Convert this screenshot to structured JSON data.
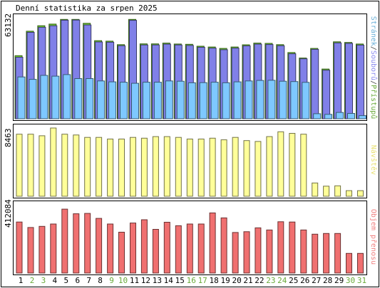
{
  "chart_data": {
    "type": "bar",
    "title": "Denní statistika za srpen 2025",
    "x": [
      "1",
      "2",
      "3",
      "4",
      "5",
      "6",
      "7",
      "8",
      "9",
      "10",
      "11",
      "12",
      "13",
      "14",
      "15",
      "16",
      "17",
      "18",
      "19",
      "20",
      "21",
      "22",
      "23",
      "24",
      "25",
      "26",
      "27",
      "28",
      "29",
      "30",
      "31"
    ],
    "weekend_days": [
      "2",
      "3",
      "9",
      "10",
      "16",
      "17",
      "23",
      "24",
      "30",
      "31"
    ],
    "panels": [
      {
        "id": "hits",
        "max_label": "63132",
        "ylim": [
          0,
          63132
        ],
        "side_label_parts": [
          {
            "text": "Stránek",
            "color": "#6ab0d8"
          },
          {
            "text": "/",
            "color": "#444444"
          },
          {
            "text": "Souborů",
            "color": "#8a8af0"
          },
          {
            "text": "/",
            "color": "#444444"
          },
          {
            "text": "Přístupů",
            "color": "#6aaa3a"
          }
        ],
        "series": [
          {
            "name": "Přístupů",
            "color": "#6ecc30",
            "values": [
              40000,
              55500,
              59000,
              60000,
              63000,
              63000,
              60500,
              49500,
              49200,
              47000,
              63000,
              47500,
              47500,
              48000,
              47400,
              47200,
              46000,
              45500,
              44600,
              45500,
              46900,
              48000,
              47800,
              47000,
              42000,
              38500,
              44600,
              31500,
              48800,
              48400,
              47400
            ]
          },
          {
            "name": "Souborů",
            "color": "#8080e8",
            "values": [
              39000,
              54800,
              58000,
              59000,
              62500,
              62600,
              59500,
              48700,
              48500,
              46300,
              62400,
              46800,
              46800,
              47300,
              46800,
              46500,
              45300,
              44800,
              43800,
              44800,
              46200,
              47300,
              47100,
              46300,
              41200,
              38000,
              44000,
              30800,
              48100,
              47800,
              46700
            ]
          },
          {
            "name": "Stránek",
            "color": "#7ec8ff",
            "values": [
              26500,
              25000,
              27500,
              27000,
              28000,
              25500,
              25500,
              24000,
              23400,
              23200,
              22500,
              23200,
              23200,
              24000,
              23800,
              22800,
              22900,
              23200,
              22800,
              23400,
              24000,
              24300,
              24400,
              23800,
              23600,
              23100,
              3200,
              2800,
              4000,
              3400,
              2000
            ]
          }
        ]
      },
      {
        "id": "visits",
        "max_label": "8463",
        "ylim": [
          0,
          8463
        ],
        "side_label_parts": [
          {
            "text": "Návštěv",
            "color": "#e8e070"
          }
        ],
        "series": [
          {
            "name": "Návštěv",
            "color": "#ffff99",
            "values": [
              7700,
              7700,
              7500,
              8463,
              7700,
              7600,
              7300,
              7300,
              7100,
              7100,
              7300,
              7200,
              7400,
              7400,
              7300,
              7100,
              7100,
              7200,
              7000,
              7300,
              6900,
              6800,
              7400,
              8000,
              7800,
              7700,
              1650,
              1250,
              1300,
              700,
              700
            ]
          }
        ]
      },
      {
        "id": "traffic",
        "max_label": "412084",
        "ylim": [
          0,
          412084
        ],
        "side_label_parts": [
          {
            "text": "Objem přenosu",
            "color": "#f08080"
          }
        ],
        "series": [
          {
            "name": "Objem přenosu",
            "color": "#f07070",
            "values": [
              308000,
              275000,
              282000,
              296000,
              386000,
              358000,
              360000,
              330000,
              296000,
              247000,
              302000,
              322000,
              264000,
              307000,
              286000,
              296000,
              296000,
              363000,
              333000,
              245000,
              250000,
              273000,
              260000,
              310000,
              308000,
              260000,
              235000,
              239000,
              239000,
              119000,
              119000
            ]
          }
        ]
      }
    ]
  }
}
